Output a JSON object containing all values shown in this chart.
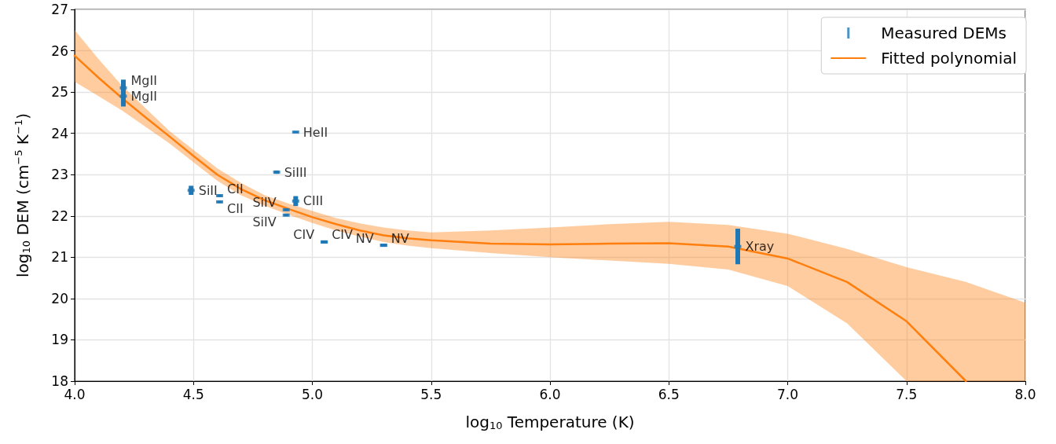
{
  "chart_data": {
    "type": "line",
    "xlabel": "log$_{10}$ Temperature (K)",
    "ylabel": "log$_{10}$ DEM (cm$^{−5}$ K$^{−1}$)",
    "xlim": [
      4,
      8
    ],
    "xticks": [
      {
        "value": 4,
        "label": "4.0"
      },
      {
        "value": 4.5,
        "label": "4.5"
      },
      {
        "value": 5,
        "label": "5.0"
      },
      {
        "value": 5.5,
        "label": "5.5"
      },
      {
        "value": 6,
        "label": "6.0"
      },
      {
        "value": 6.5,
        "label": "6.5"
      },
      {
        "value": 7,
        "label": "7.0"
      },
      {
        "value": 7.5,
        "label": "7.5"
      },
      {
        "value": 8,
        "label": "8.0"
      }
    ],
    "ylim": [
      18,
      27
    ],
    "yticks": [
      18,
      19,
      20,
      21,
      22,
      23,
      24,
      25,
      26,
      27
    ],
    "grid": true,
    "legend": "top right",
    "series": [
      {
        "name": "Measured DEMs",
        "type": "scatter",
        "marker": "square",
        "color": "#1f77b4",
        "x": [
          4.205,
          4.205,
          4.93,
          4.85,
          4.49,
          4.61,
          4.61,
          4.93,
          4.89,
          4.89,
          5.05,
          5.05,
          5.3,
          5.3,
          6.79
        ],
        "values": [
          25.1,
          24.9,
          24.03,
          23.06,
          22.62,
          22.49,
          22.34,
          22.36,
          22.15,
          22.02,
          21.37,
          21.37,
          21.29,
          21.29,
          21.26
        ],
        "errors": [
          [
            24.9,
            25.3
          ],
          [
            24.65,
            25.15
          ],
          [
            24.01,
            24.05
          ],
          [
            23.02,
            23.1
          ],
          [
            22.51,
            22.73
          ],
          [
            22.46,
            22.52
          ],
          [
            22.31,
            22.37
          ],
          [
            22.24,
            22.48
          ],
          [
            22.12,
            22.18
          ],
          [
            21.99,
            22.05
          ],
          [
            21.34,
            21.4
          ],
          [
            21.34,
            21.4
          ],
          [
            21.26,
            21.32
          ],
          [
            21.26,
            21.32
          ],
          [
            20.83,
            21.69
          ]
        ],
        "value_labels": [
          "MgII",
          "MgII",
          "HeII",
          "SiIII",
          "SiII",
          "CII",
          "CII",
          "CIII",
          "SiIV",
          "SiIV",
          "CIV",
          "CIV",
          "NV",
          "NV",
          "Xray"
        ]
      },
      {
        "name": "Fitted polynomial",
        "marker": "none",
        "line_style": "solid",
        "color": "#ff7f0e",
        "x": [
          4.0,
          4.1,
          4.2,
          4.3,
          4.4,
          4.5,
          4.6,
          4.7,
          4.8,
          4.9,
          5.0,
          5.1,
          5.2,
          5.3,
          5.4,
          5.5,
          5.75,
          6.0,
          6.25,
          6.5,
          6.75,
          7.0,
          7.25,
          7.5,
          7.75,
          8.0
        ],
        "values": [
          25.88,
          25.35,
          24.85,
          24.38,
          23.92,
          23.45,
          23.0,
          22.65,
          22.38,
          22.17,
          21.97,
          21.8,
          21.65,
          21.53,
          21.46,
          21.41,
          21.33,
          21.31,
          21.33,
          21.34,
          21.26,
          20.97,
          20.4,
          19.45,
          18.0,
          null
        ],
        "upper": [
          26.5,
          25.8,
          25.15,
          24.6,
          24.05,
          23.6,
          23.15,
          22.8,
          22.5,
          22.3,
          22.12,
          21.95,
          21.82,
          21.72,
          21.65,
          21.6,
          21.65,
          21.72,
          21.8,
          21.86,
          21.78,
          21.57,
          21.2,
          20.76,
          20.4,
          19.9
        ],
        "lower": [
          25.25,
          24.9,
          24.55,
          24.15,
          23.75,
          23.3,
          22.85,
          22.5,
          22.25,
          22.03,
          21.83,
          21.65,
          21.5,
          21.37,
          21.28,
          21.22,
          21.1,
          21.0,
          20.92,
          20.84,
          20.7,
          20.3,
          19.4,
          18.0,
          18.0,
          18.0
        ]
      }
    ]
  }
}
